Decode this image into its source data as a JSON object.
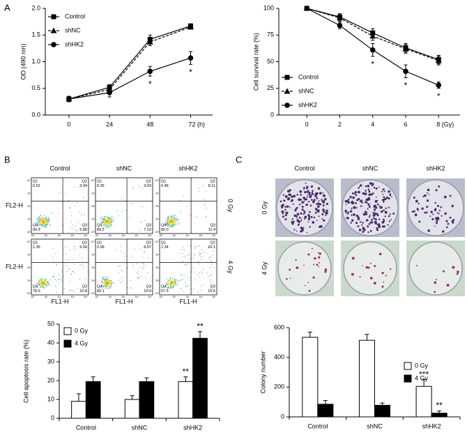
{
  "panel_labels": [
    "A",
    "B",
    "C"
  ],
  "chart_data": [
    {
      "type": "line",
      "y_label": "OD (490 nm)",
      "x": [
        0,
        24,
        48,
        72
      ],
      "xlim": [
        -14,
        85
      ],
      "xticks": [
        0,
        24,
        48,
        {
          "value": 72,
          "label": "72 (h)"
        }
      ],
      "ylim": [
        0,
        2.0
      ],
      "yticks": [
        {
          "value": 0,
          "label": "0.0"
        },
        0.5,
        {
          "value": 1,
          "label": "1.0"
        },
        1.5,
        {
          "value": 2,
          "label": "2.0"
        }
      ],
      "legend": "upper left",
      "series": [
        {
          "name": "Control",
          "color": "#000000",
          "marker": "square",
          "dash": false,
          "values": [
            0.3,
            0.52,
            1.42,
            1.67
          ],
          "errors": [
            0.05,
            0.05,
            0.08,
            0.04
          ],
          "annotations": [
            null,
            null,
            null,
            null
          ]
        },
        {
          "name": "shNC",
          "color": "#000000",
          "marker": "triangle",
          "dash": true,
          "values": [
            0.3,
            0.48,
            1.37,
            1.65
          ],
          "errors": [
            0.05,
            0.05,
            0.07,
            0.04
          ],
          "annotations": [
            null,
            null,
            null,
            null
          ]
        },
        {
          "name": "shHK2",
          "color": "#000000",
          "marker": "circle",
          "dash": false,
          "values": [
            0.3,
            0.42,
            0.82,
            1.07
          ],
          "errors": [
            0.05,
            0.08,
            0.09,
            0.12
          ],
          "annotations": [
            null,
            null,
            "*",
            "*"
          ]
        }
      ]
    },
    {
      "type": "line",
      "y_label": "Cell survival rate (%)",
      "x": [
        0,
        2,
        4,
        6,
        8
      ],
      "xlim": [
        -1.7,
        9.3
      ],
      "xticks": [
        0,
        2,
        4,
        6,
        {
          "value": 8,
          "label": "8 (Gy)"
        }
      ],
      "ylim": [
        0,
        100
      ],
      "yticks": [
        0,
        25,
        50,
        75,
        100
      ],
      "legend": "lower left",
      "series": [
        {
          "name": "Control",
          "color": "#000000",
          "marker": "square",
          "dash": false,
          "values": [
            100,
            92,
            77,
            63,
            52
          ],
          "errors": [
            1,
            3,
            4,
            4,
            4
          ],
          "annotations": [
            null,
            null,
            null,
            null,
            null
          ]
        },
        {
          "name": "shNC",
          "color": "#000000",
          "marker": "triangle",
          "dash": true,
          "values": [
            100,
            91,
            74,
            62,
            51
          ],
          "errors": [
            1,
            3,
            4,
            4,
            4
          ],
          "annotations": [
            null,
            null,
            null,
            null,
            null
          ]
        },
        {
          "name": "shHK2",
          "color": "#000000",
          "marker": "circle",
          "dash": false,
          "values": [
            100,
            84,
            61,
            41,
            28
          ],
          "errors": [
            1,
            3,
            6,
            6,
            3
          ],
          "annotations": [
            null,
            null,
            "*",
            "*",
            "*"
          ]
        }
      ]
    },
    {
      "type": "bar",
      "y_label": "Cell apoptosis rate (%)",
      "categories": [
        "Control",
        "shNC",
        "shHK2"
      ],
      "ylim": [
        0,
        50
      ],
      "yticks": [
        0,
        10,
        20,
        30,
        40,
        50
      ],
      "legend": "upper left",
      "series": [
        {
          "name": "0 Gy",
          "color": "#ffffff",
          "values": [
            9,
            10,
            19.5
          ],
          "errors": [
            4,
            2,
            2.5
          ],
          "annotations": [
            null,
            null,
            "**"
          ]
        },
        {
          "name": "4 Gy",
          "color": "#000000",
          "values": [
            19.5,
            19.5,
            42.5
          ],
          "errors": [
            2.5,
            2,
            3.5
          ],
          "annotations": [
            null,
            null,
            "**"
          ]
        }
      ]
    },
    {
      "type": "bar",
      "y_label": "Colony number",
      "categories": [
        "Control",
        "shNC",
        "shHK2"
      ],
      "ylim": [
        0,
        600
      ],
      "yticks": [
        0,
        200,
        400,
        600
      ],
      "legend": "upper right",
      "series": [
        {
          "name": "0 Gy",
          "color": "#ffffff",
          "values": [
            535,
            515,
            205
          ],
          "errors": [
            35,
            40,
            45
          ],
          "annotations": [
            null,
            null,
            "***"
          ]
        },
        {
          "name": "4 Gy",
          "color": "#000000",
          "values": [
            85,
            78,
            25
          ],
          "errors": [
            25,
            15,
            15
          ],
          "annotations": [
            null,
            null,
            "**"
          ]
        }
      ]
    }
  ],
  "flow_cytometry": {
    "columns": [
      "Control",
      "shNC",
      "shHK2"
    ],
    "rows": [
      "0 Gy",
      "4 Gy"
    ],
    "y_label": "FL2-H",
    "x_label": "FL1-H",
    "quadrant_names": [
      "Q1",
      "Q2",
      "Q3",
      "Q4"
    ],
    "axis_ticks": [
      "10⁰",
      "10¹",
      "10²",
      "10³",
      "10⁴"
    ],
    "plots": [
      [
        {
          "q1": "0.62",
          "q2": "3.04",
          "q3": "5.88",
          "q4": "90.9"
        },
        {
          "q1": "0.35",
          "q2": "3.03",
          "q3": "7.19",
          "q4": "89.2"
        },
        {
          "q1": "0.48",
          "q2": "8.11",
          "q3": "11.4",
          "q4": "80.0"
        }
      ],
      [
        {
          "q1": "1.35",
          "q2": "9.04",
          "q3": "10.8",
          "q4": "78.9"
        },
        {
          "q1": "0.98",
          "q2": "8.97",
          "q3": "10.9",
          "q4": "80.1"
        },
        {
          "q1": "1.34",
          "q2": "26.1",
          "q3": "16.6",
          "q4": "57.5"
        }
      ]
    ]
  },
  "colonies": {
    "columns": [
      "Control",
      "shNC",
      "shHK2"
    ],
    "rows": [
      "0 Gy",
      "4 Gy"
    ]
  }
}
